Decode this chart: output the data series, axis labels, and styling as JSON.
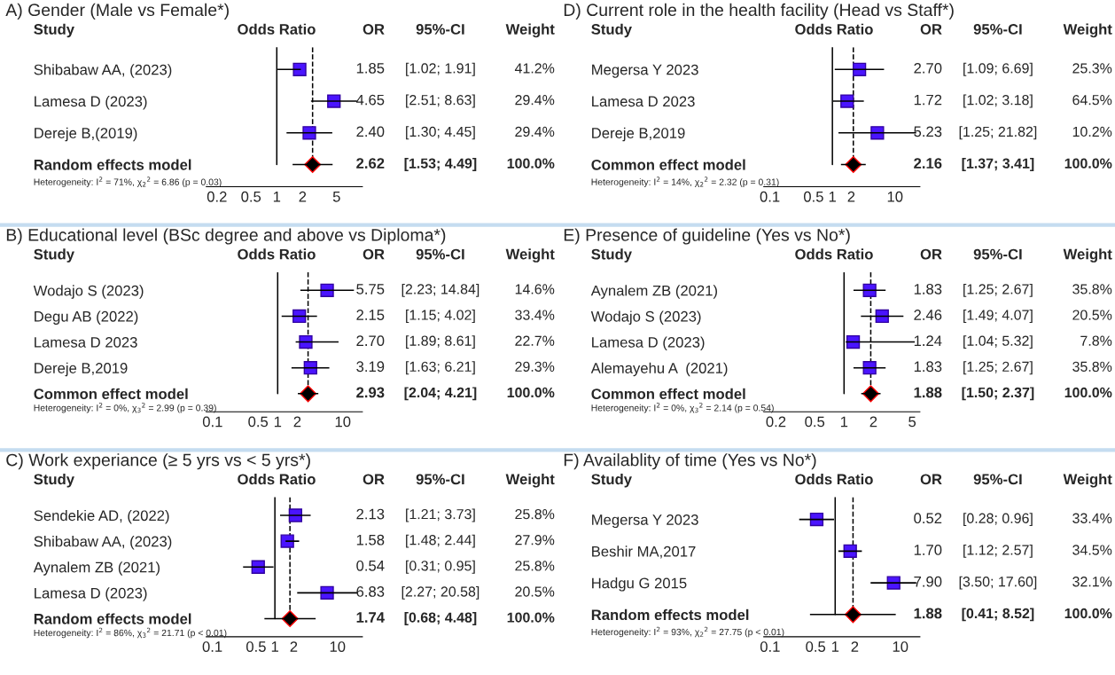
{
  "chart_data": [
    {
      "type": "scatter",
      "orientation": "horizontal",
      "title": "A) Gender (Male vs Female*)",
      "ylabel": "Study",
      "xlabel": "Odds Ratio",
      "log": "x",
      "xlim": [
        0.15,
        10
      ],
      "xticks": [
        0.2,
        0.5,
        1,
        2,
        5
      ],
      "grid": false,
      "legend": false,
      "categories": [
        "Shibabaw AA, (2023)",
        "Lamesa D (2023)",
        "Dereje B,(2019)",
        "Random effects model"
      ],
      "series": [
        {
          "marker": "square",
          "color": "#4a14ff",
          "values": [
            1.85,
            4.65,
            2.4,
            null
          ],
          "errors": [
            [
              1.02,
              1.91
            ],
            [
              2.51,
              8.63
            ],
            [
              1.3,
              4.45
            ],
            null
          ]
        },
        {
          "marker": "diamond",
          "color": "#000000",
          "values": [
            null,
            null,
            null,
            2.62
          ],
          "errors": [
            null,
            null,
            null,
            [
              1.53,
              4.49
            ]
          ]
        }
      ],
      "ref_lines": [
        {
          "axis": "x",
          "value": 1,
          "line_style": "solid",
          "color": "#000000"
        },
        {
          "axis": "x",
          "value": 2.62,
          "line_style": "dashed",
          "color": "#000000"
        }
      ],
      "annotations": [
        "OR",
        "95%-CI",
        "Weight",
        "Heterogeneity: I$^{2}$ = 71%, χ$_{2}$$^{2}$ = 6.86 (p = 0.03)",
        "1.85",
        "[1.02; 1.91]",
        "41.2%",
        "4.65",
        "[2.51; 8.63]",
        "29.4%",
        "2.40",
        "[1.30; 4.45]",
        "29.4%",
        "2.62",
        "[1.53; 4.49]",
        "100.0%"
      ]
    },
    {
      "type": "scatter",
      "orientation": "horizontal",
      "title": "D) Current role in the health facility (Head vs Staff*)",
      "ylabel": "Study",
      "xlabel": "Odds Ratio",
      "log": "x",
      "xlim": [
        0.08,
        25
      ],
      "xticks": [
        0.1,
        0.5,
        1,
        2,
        10
      ],
      "grid": false,
      "legend": false,
      "categories": [
        "Megersa Y 2023",
        "Lamesa D 2023",
        "Dereje B,2019",
        "Common effect model"
      ],
      "series": [
        {
          "marker": "square",
          "color": "#4a14ff",
          "values": [
            2.7,
            1.72,
            5.23,
            null
          ],
          "errors": [
            [
              1.09,
              6.69
            ],
            [
              1.02,
              3.18
            ],
            [
              1.25,
              21.82
            ],
            null
          ]
        },
        {
          "marker": "diamond",
          "color": "#000000",
          "values": [
            null,
            null,
            null,
            2.16
          ],
          "errors": [
            null,
            null,
            null,
            [
              1.37,
              3.41
            ]
          ]
        }
      ],
      "ref_lines": [
        {
          "axis": "x",
          "value": 1,
          "line_style": "solid",
          "color": "#000000"
        },
        {
          "axis": "x",
          "value": 2.16,
          "line_style": "dashed",
          "color": "#000000"
        }
      ],
      "annotations": [
        "OR",
        "95%-CI",
        "Weight",
        "Heterogeneity: I$^{2}$ = 14%, χ$_{2}$$^{2}$ = 2.32 (p = 0.31)",
        "2.70",
        "[1.09; 6.69]",
        "25.3%",
        "1.72",
        "[1.02; 3.18]",
        "64.5%",
        "5.23",
        "[1.25; 21.82]",
        "10.2%",
        "2.16",
        "[1.37; 3.41]",
        "100.0%"
      ]
    },
    {
      "type": "scatter",
      "orientation": "horizontal",
      "title": "B) Educational level (BSc degree and above vs Diploma*)",
      "ylabel": "Study",
      "xlabel": "Odds Ratio",
      "log": "x",
      "xlim": [
        0.08,
        20
      ],
      "xticks": [
        0.1,
        0.5,
        1,
        2,
        10
      ],
      "grid": false,
      "legend": false,
      "categories": [
        "Wodajo S (2023)",
        "Degu AB (2022)",
        "Lamesa D 2023",
        "Dereje B,2019",
        "Common effect model"
      ],
      "series": [
        {
          "marker": "square",
          "color": "#4a14ff",
          "values": [
            5.75,
            2.15,
            2.7,
            3.19,
            null
          ],
          "errors": [
            [
              2.23,
              14.84
            ],
            [
              1.15,
              4.02
            ],
            [
              1.89,
              8.61
            ],
            [
              1.63,
              6.21
            ],
            null
          ]
        },
        {
          "marker": "diamond",
          "color": "#000000",
          "values": [
            null,
            null,
            null,
            null,
            2.93
          ],
          "errors": [
            null,
            null,
            null,
            null,
            [
              2.04,
              4.21
            ]
          ]
        }
      ],
      "ref_lines": [
        {
          "axis": "x",
          "value": 1,
          "line_style": "solid",
          "color": "#000000"
        },
        {
          "axis": "x",
          "value": 2.93,
          "line_style": "dashed",
          "color": "#000000"
        }
      ],
      "annotations": [
        "OR",
        "95%-CI",
        "Weight",
        "Heterogeneity: I$^{2}$ = 0%, χ$_{3}$$^{2}$ = 2.99 (p = 0.39)",
        "5.75",
        "[2.23; 14.84]",
        "14.6%",
        "2.15",
        "[1.15; 4.02]",
        "33.4%",
        "2.70",
        "[1.89; 8.61]",
        "22.7%",
        "3.19",
        "[1.63; 6.21]",
        "29.3%",
        "2.93",
        "[2.04; 4.21]",
        "100.0%"
      ]
    },
    {
      "type": "scatter",
      "orientation": "horizontal",
      "title": "E) Presence of guideline (Yes vs No*)",
      "ylabel": "Study",
      "xlabel": "Odds Ratio",
      "log": "x",
      "xlim": [
        0.15,
        6
      ],
      "xticks": [
        0.2,
        0.5,
        1,
        2,
        5
      ],
      "grid": false,
      "legend": false,
      "categories": [
        "Aynalem ZB (2021)",
        "Wodajo S (2023)",
        "Lamesa D (2023)",
        "Alemayehu A  (2021)",
        "Common effect model"
      ],
      "series": [
        {
          "marker": "square",
          "color": "#4a14ff",
          "values": [
            1.83,
            2.46,
            1.24,
            1.83,
            null
          ],
          "errors": [
            [
              1.25,
              2.67
            ],
            [
              1.49,
              4.07
            ],
            [
              1.04,
              5.32
            ],
            [
              1.25,
              2.67
            ],
            null
          ]
        },
        {
          "marker": "diamond",
          "color": "#000000",
          "values": [
            null,
            null,
            null,
            null,
            1.88
          ],
          "errors": [
            null,
            null,
            null,
            null,
            [
              1.5,
              2.37
            ]
          ]
        }
      ],
      "ref_lines": [
        {
          "axis": "x",
          "value": 1,
          "line_style": "solid",
          "color": "#000000"
        },
        {
          "axis": "x",
          "value": 1.88,
          "line_style": "dashed",
          "color": "#000000"
        }
      ],
      "annotations": [
        "OR",
        "95%-CI",
        "Weight",
        "Heterogeneity: I$^{2}$ = 0%, χ$_{3}$$^{2}$ = 2.14 (p = 0.54)",
        "1.83",
        "[1.25; 2.67]",
        "35.8%",
        "2.46",
        "[1.49; 4.07]",
        "20.5%",
        "1.24",
        "[1.04; 5.32]",
        "7.8%",
        "1.83",
        "[1.25; 2.67]",
        "35.8%",
        "1.88",
        "[1.50; 2.37]",
        "100.0%"
      ]
    },
    {
      "type": "scatter",
      "orientation": "horizontal",
      "title": "C) Work experiance (≥ 5 yrs vs < 5 yrs*)",
      "ylabel": "Study",
      "xlabel": "Odds Ratio",
      "log": "x",
      "xlim": [
        0.08,
        25
      ],
      "xticks": [
        0.1,
        0.5,
        1,
        2,
        10
      ],
      "grid": false,
      "legend": false,
      "categories": [
        "Sendekie AD, (2022)",
        "Shibabaw AA, (2023)",
        "Aynalem ZB (2021)",
        "Lamesa D (2023)",
        "Random effects model"
      ],
      "series": [
        {
          "marker": "square",
          "color": "#4a14ff",
          "values": [
            2.13,
            1.58,
            0.54,
            6.83,
            null
          ],
          "errors": [
            [
              1.21,
              3.73
            ],
            [
              1.48,
              2.44
            ],
            [
              0.31,
              0.95
            ],
            [
              2.27,
              20.58
            ],
            null
          ]
        },
        {
          "marker": "diamond",
          "color": "#000000",
          "values": [
            null,
            null,
            null,
            null,
            1.74
          ],
          "errors": [
            null,
            null,
            null,
            null,
            [
              0.68,
              4.48
            ]
          ]
        }
      ],
      "ref_lines": [
        {
          "axis": "x",
          "value": 1,
          "line_style": "solid",
          "color": "#000000"
        },
        {
          "axis": "x",
          "value": 1.74,
          "line_style": "dashed",
          "color": "#000000"
        }
      ],
      "annotations": [
        "OR",
        "95%-CI",
        "Weight",
        "Heterogeneity: I$^{2}$ = 86%, χ$_{3}$$^{2}$ = 21.71 (p < 0.01)",
        "2.13",
        "[1.21; 3.73]",
        "25.8%",
        "1.58",
        "[1.48; 2.44]",
        "27.9%",
        "0.54",
        "[0.31; 0.95]",
        "25.8%",
        "6.83",
        "[2.27; 20.58]",
        "20.5%",
        "1.74",
        "[0.68; 4.48]",
        "100.0%"
      ]
    },
    {
      "type": "scatter",
      "orientation": "horizontal",
      "title": "F) Availablity of time (Yes vs No*)",
      "ylabel": "Study",
      "xlabel": "Odds Ratio",
      "log": "x",
      "xlim": [
        0.08,
        20
      ],
      "xticks": [
        0.1,
        0.5,
        1,
        2,
        10
      ],
      "grid": false,
      "legend": false,
      "categories": [
        "Megersa Y 2023",
        "Beshir MA,2017",
        "Hadgu G 2015",
        "Random effects model"
      ],
      "series": [
        {
          "marker": "square",
          "color": "#4a14ff",
          "values": [
            0.52,
            1.7,
            7.9,
            null
          ],
          "errors": [
            [
              0.28,
              0.96
            ],
            [
              1.12,
              2.57
            ],
            [
              3.5,
              17.6
            ],
            null
          ]
        },
        {
          "marker": "diamond",
          "color": "#000000",
          "values": [
            null,
            null,
            null,
            1.88
          ],
          "errors": [
            null,
            null,
            null,
            [
              0.41,
              8.52
            ]
          ]
        }
      ],
      "ref_lines": [
        {
          "axis": "x",
          "value": 1,
          "line_style": "solid",
          "color": "#000000"
        },
        {
          "axis": "x",
          "value": 1.88,
          "line_style": "dashed",
          "color": "#000000"
        }
      ],
      "annotations": [
        "OR",
        "95%-CI",
        "Weight",
        "Heterogeneity: I$^{2}$ = 93%, χ$_{2}$$^{2}$ = 27.75 (p < 0.01)",
        "0.52",
        "[0.28; 0.96]",
        "33.4%",
        "1.70",
        "[1.12; 2.57]",
        "34.5%",
        "7.90",
        "[3.50; 17.60]",
        "32.1%",
        "1.88",
        "[0.41; 8.52]",
        "100.0%"
      ]
    }
  ]
}
